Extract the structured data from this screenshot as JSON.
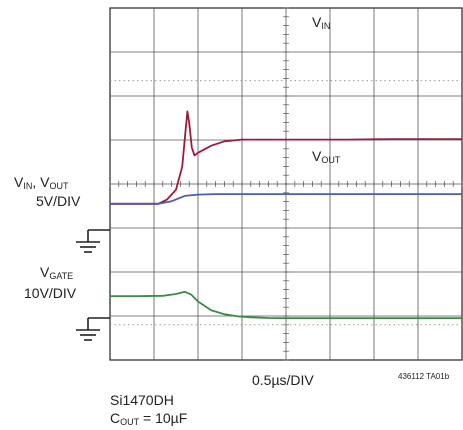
{
  "chart_data": {
    "type": "line",
    "title": "",
    "xlabel": "0.5µs/DIV",
    "figure_id": "436112 TA01b",
    "divisions": {
      "x": 8,
      "y": 8
    },
    "x_unit": "µs",
    "x_range_us": [
      0,
      4
    ],
    "series": [
      {
        "name": "VIN",
        "label": "V",
        "label_sub": "IN",
        "color": "#9b1b3a",
        "scale_label": "5V/DIV",
        "volts_per_div": 5,
        "x": [
          0,
          0.55,
          0.65,
          0.75,
          0.82,
          0.86,
          0.88,
          0.9,
          0.93,
          0.96,
          1.0,
          1.15,
          1.3,
          1.5,
          1.8,
          2.2,
          2.7,
          3.2,
          4.0
        ],
        "y": [
          0,
          0,
          0.5,
          1.6,
          4.2,
          8.5,
          10.5,
          9.2,
          6.4,
          5.5,
          5.8,
          6.6,
          7.1,
          7.3,
          7.3,
          7.3,
          7.3,
          7.35,
          7.35
        ]
      },
      {
        "name": "VOUT",
        "label": "V",
        "label_sub": "OUT",
        "color": "#4a5da8",
        "scale_label": "5V/DIV",
        "volts_per_div": 5,
        "x": [
          0,
          0.55,
          0.7,
          0.85,
          1.0,
          1.2,
          1.5,
          2.0,
          2.5,
          3.0,
          3.5,
          4.0
        ],
        "y": [
          0,
          0,
          0.3,
          0.9,
          1.05,
          1.1,
          1.1,
          1.1,
          1.1,
          1.1,
          1.1,
          1.1
        ]
      },
      {
        "name": "VGATE",
        "label": "V",
        "label_sub": "GATE",
        "color": "#3d8a4a",
        "scale_label": "10V/DIV",
        "volts_per_div": 10,
        "x": [
          0,
          0.3,
          0.6,
          0.75,
          0.85,
          0.92,
          1.0,
          1.15,
          1.3,
          1.45,
          1.6,
          1.8,
          2.0,
          2.5,
          3.0,
          4.0
        ],
        "y": [
          5.0,
          5.0,
          5.1,
          5.5,
          6.0,
          5.4,
          3.8,
          1.8,
          0.9,
          0.4,
          0.2,
          0.05,
          0.0,
          0.0,
          0.0,
          0.0
        ]
      }
    ]
  },
  "labels": {
    "vin_trace": {
      "main": "V",
      "sub": "IN"
    },
    "vout_trace": {
      "main": "V",
      "sub": "OUT"
    },
    "left_top_line1_v1": "V",
    "left_top_line1_s1": "IN",
    "left_top_line1_sep": ", V",
    "left_top_line1_s2": "OUT",
    "left_top_line2": "5V/DIV",
    "left_gate_line1_v": "V",
    "left_gate_line1_s": "GATE",
    "left_gate_line2": "10V/DIV",
    "time_div": "0.5µs/DIV",
    "fig_id": "436112 TA01b",
    "part": "Si1470DH",
    "cout_v": "C",
    "cout_sub": "OUT",
    "cout_rest": " = 10µF"
  }
}
